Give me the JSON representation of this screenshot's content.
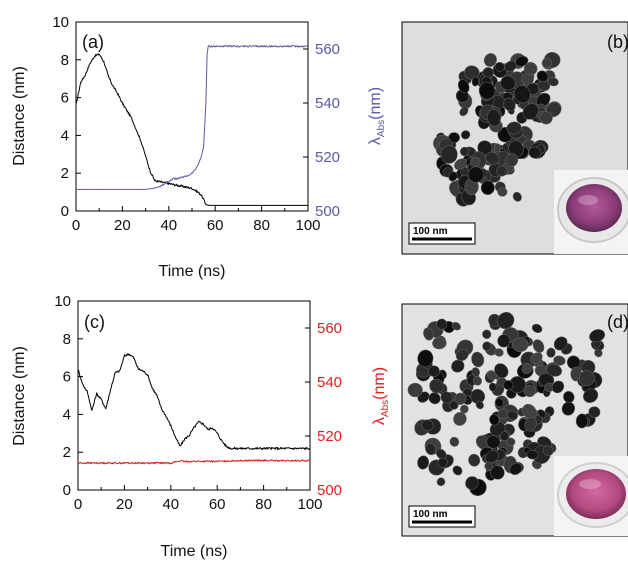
{
  "chart_data": [
    {
      "type": "line",
      "panel_label": "(a)",
      "xlabel": "Time (ns)",
      "ylabel": "Distance (nm)",
      "y2label_main": "λ",
      "y2label_sub": "Abs",
      "y2label_unit": "(nm)",
      "xlim": [
        0,
        100
      ],
      "ylim": [
        0,
        10
      ],
      "y2lim": [
        500,
        570
      ],
      "x_ticks": [
        "0",
        "20",
        "40",
        "60",
        "80",
        "100"
      ],
      "y_ticks": [
        "0",
        "2",
        "4",
        "6",
        "8",
        "10"
      ],
      "y2_ticks": [
        "500",
        "520",
        "540",
        "560"
      ],
      "grid": false,
      "series": [
        {
          "axis": "left",
          "color": "#000000",
          "x": [
            0,
            2,
            4,
            6,
            8,
            10,
            12,
            14,
            16,
            18,
            20,
            22,
            24,
            26,
            28,
            30,
            32,
            34,
            36,
            38,
            40,
            42,
            44,
            46,
            48,
            50,
            52,
            54,
            55,
            56,
            57,
            60,
            70,
            80,
            90,
            100
          ],
          "y": [
            5.6,
            6.8,
            7.2,
            7.8,
            8.2,
            8.3,
            7.9,
            7.1,
            6.6,
            6.2,
            5.7,
            5.3,
            4.9,
            4.3,
            3.7,
            2.9,
            2.1,
            1.6,
            1.55,
            1.5,
            1.45,
            1.4,
            1.35,
            1.3,
            1.25,
            1.2,
            1.05,
            0.85,
            0.6,
            0.35,
            0.3,
            0.3,
            0.3,
            0.3,
            0.3,
            0.3
          ]
        },
        {
          "axis": "right",
          "color": "#5a5aa6",
          "x": [
            0,
            10,
            20,
            30,
            34,
            36,
            38,
            40,
            42,
            44,
            46,
            48,
            50,
            52,
            53,
            54,
            55,
            56,
            56.5,
            57,
            60,
            70,
            80,
            90,
            100
          ],
          "y": [
            508,
            508,
            508,
            508,
            508.5,
            509,
            510,
            511,
            512,
            512,
            512.5,
            513,
            514,
            516,
            518,
            520,
            524,
            540,
            558,
            561,
            561,
            561,
            561,
            561,
            561
          ]
        }
      ]
    },
    {
      "type": "line",
      "panel_label": "(c)",
      "xlabel": "Time (ns)",
      "ylabel": "Distance (nm)",
      "y2label_main": "λ",
      "y2label_sub": "Abs",
      "y2label_unit": "(nm)",
      "xlim": [
        0,
        100
      ],
      "ylim": [
        0,
        10
      ],
      "y2lim": [
        500,
        570
      ],
      "x_ticks": [
        "0",
        "20",
        "40",
        "60",
        "80",
        "100"
      ],
      "y_ticks": [
        "0",
        "2",
        "4",
        "6",
        "8",
        "10"
      ],
      "y2_ticks": [
        "500",
        "520",
        "540",
        "560"
      ],
      "grid": false,
      "series": [
        {
          "axis": "left",
          "color": "#000000",
          "x": [
            0,
            2,
            4,
            6,
            8,
            10,
            12,
            14,
            16,
            18,
            20,
            22,
            24,
            26,
            28,
            30,
            32,
            34,
            36,
            38,
            40,
            42,
            44,
            46,
            48,
            50,
            52,
            54,
            56,
            58,
            60,
            62,
            64,
            66,
            70,
            80,
            90,
            100
          ],
          "y": [
            6.4,
            5.6,
            5.2,
            4.2,
            5.1,
            4.8,
            4.3,
            5.3,
            6.2,
            6.3,
            7.1,
            7.2,
            7.0,
            6.4,
            6.3,
            6.1,
            5.4,
            5.0,
            4.3,
            3.9,
            3.4,
            2.8,
            2.3,
            2.7,
            2.9,
            3.3,
            3.6,
            3.5,
            3.2,
            3.3,
            3.0,
            2.6,
            2.3,
            2.2,
            2.2,
            2.2,
            2.2,
            2.2
          ]
        },
        {
          "axis": "right",
          "color": "#e02020",
          "x": [
            0,
            10,
            20,
            30,
            40,
            42,
            44,
            46,
            50,
            60,
            70,
            80,
            90,
            100
          ],
          "y": [
            510,
            510,
            510,
            510,
            510,
            510.4,
            510.8,
            510.5,
            510.6,
            510.6,
            510.9,
            510.9,
            510.8,
            510.9
          ]
        }
      ]
    }
  ],
  "micrographs": [
    {
      "panel_label": "(b)",
      "scale_bar": "100 nm",
      "inset_color": "#8a3c78"
    },
    {
      "panel_label": "(d)",
      "scale_bar": "100 nm",
      "inset_color": "#b24a7e"
    }
  ]
}
